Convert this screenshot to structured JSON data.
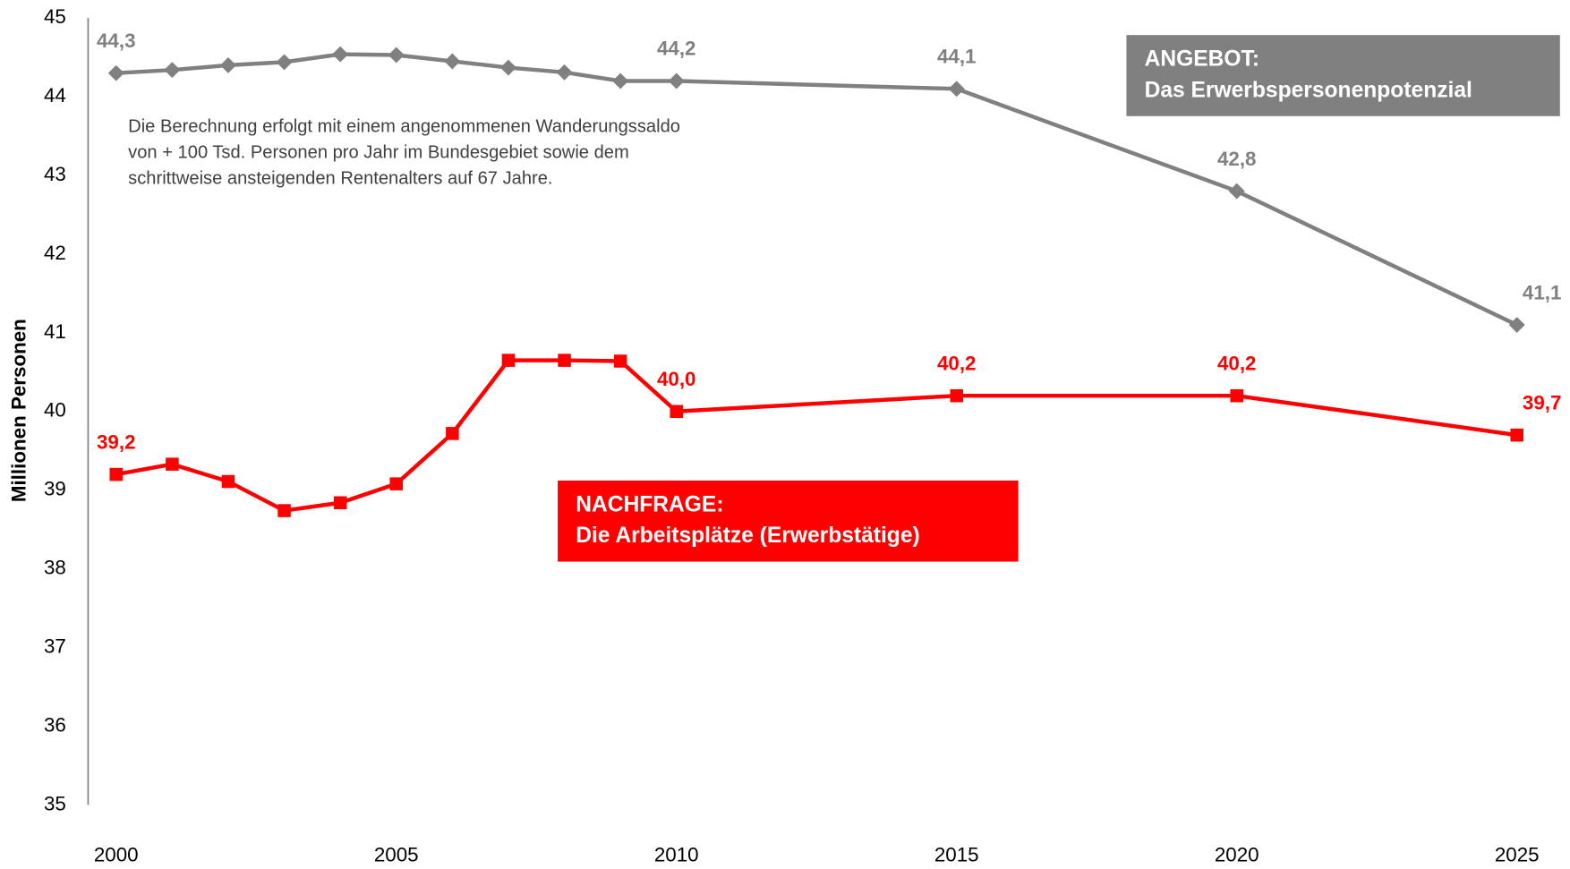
{
  "chart_data": {
    "type": "line",
    "y_axis_label": "Millionen Personen",
    "x": [
      2000,
      2001,
      2002,
      2003,
      2004,
      2005,
      2006,
      2007,
      2008,
      2009,
      2010,
      2015,
      2020,
      2025
    ],
    "series": [
      {
        "name": "ANGEBOT: Das Erwerbspersonenpotenzial",
        "color": "#808080",
        "marker": "diamond",
        "values": [
          44.3,
          44.34,
          44.4,
          44.44,
          44.54,
          44.53,
          44.45,
          44.37,
          44.31,
          44.2,
          44.2,
          44.1,
          42.8,
          41.1
        ],
        "value_labels": [
          "44,3",
          null,
          null,
          null,
          null,
          null,
          null,
          null,
          null,
          null,
          "44,2",
          "44,1",
          "42,8",
          "41,1"
        ]
      },
      {
        "name": "NACHFRAGE: Die Arbeitsplätze (Erwerbstätige)",
        "color": "#ff0000",
        "marker": "square",
        "values": [
          39.2,
          39.33,
          39.11,
          38.74,
          38.84,
          39.08,
          39.72,
          40.65,
          40.65,
          40.64,
          40.0,
          40.2,
          40.2,
          39.7
        ],
        "value_labels": [
          "39,2",
          null,
          null,
          null,
          null,
          null,
          null,
          null,
          null,
          null,
          "40,0",
          "40,2",
          "40,2",
          "39,7"
        ]
      }
    ],
    "boxes": [
      {
        "lines": [
          "ANGEBOT:",
          "Das Erwerbspersonenpotenzial"
        ],
        "color": "#808080"
      },
      {
        "lines": [
          "NACHFRAGE:",
          "Die Arbeitsplätze (Erwerbstätige)"
        ],
        "color": "#ff0000"
      }
    ],
    "note": [
      "Die Berechnung erfolgt mit einem angenommenen Wanderungssaldo",
      "von + 100 Tsd. Personen pro Jahr im Bundesgebiet sowie dem",
      "schrittweise  ansteigenden Rentenalters auf  67 Jahre."
    ],
    "xlim": [
      2000,
      2025
    ],
    "xticks": [
      2000,
      2005,
      2010,
      2015,
      2020,
      2025
    ],
    "ylim": [
      35,
      45
    ],
    "yticks": [
      35,
      36,
      37,
      38,
      39,
      40,
      41,
      42,
      43,
      44,
      45
    ],
    "grid": false
  }
}
